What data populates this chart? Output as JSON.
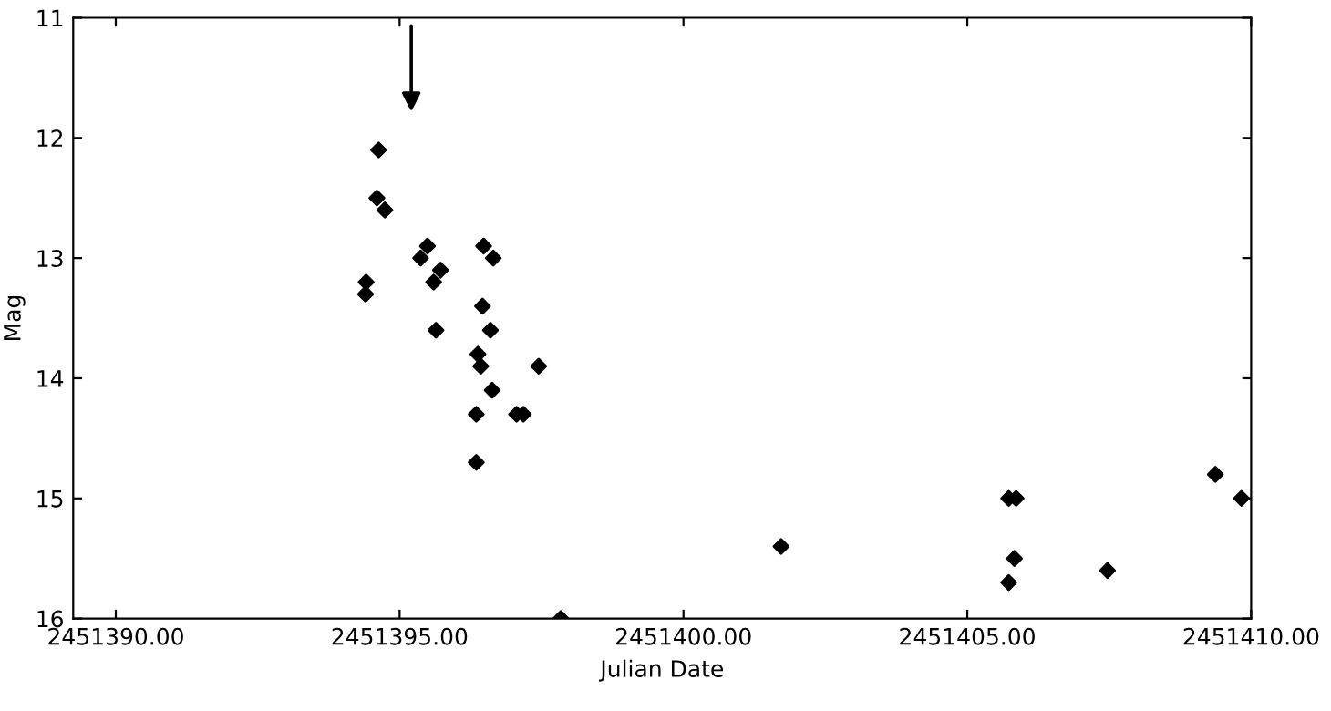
{
  "chart_data": {
    "type": "scatter",
    "xlabel": "Julian Date",
    "ylabel": "Mag",
    "x": [
      2451394.63,
      2451394.6,
      2451394.74,
      2451395.49,
      2451395.37,
      2451395.72,
      2451395.6,
      2451394.41,
      2451394.4,
      2451395.64,
      2451396.48,
      2451396.65,
      2451396.46,
      2451396.6,
      2451396.38,
      2451396.43,
      2451397.45,
      2451396.63,
      2451396.35,
      2451397.06,
      2451397.18,
      2451396.35,
      2451397.84,
      2451401.72,
      2451405.73,
      2451405.86,
      2451405.83,
      2451405.73,
      2451407.47,
      2451409.37,
      2451409.83
    ],
    "series": [
      {
        "color": "#000000",
        "values": [
          12.1,
          12.5,
          12.6,
          12.9,
          13.0,
          13.1,
          13.2,
          13.2,
          13.3,
          13.6,
          12.9,
          13.0,
          13.4,
          13.6,
          13.8,
          13.9,
          13.9,
          14.1,
          14.3,
          14.3,
          14.3,
          14.7,
          16.0,
          15.4,
          15.0,
          15.0,
          15.5,
          15.7,
          15.6,
          14.8,
          15.0
        ]
      }
    ],
    "marker": "diamond",
    "grid": false,
    "legend": false,
    "xlim": [
      2451389.25,
      2451410
    ],
    "ylim": [
      16,
      11
    ],
    "xticks": [
      {
        "value": 2451390,
        "label": "2451390.00"
      },
      {
        "value": 2451395,
        "label": "2451395.00"
      },
      {
        "value": 2451400,
        "label": "2451400.00"
      },
      {
        "value": 2451405,
        "label": "2451405.00"
      },
      {
        "value": 2451410,
        "label": "2451410.00"
      }
    ],
    "yticks": [
      11,
      12,
      13,
      14,
      15,
      16
    ]
  }
}
